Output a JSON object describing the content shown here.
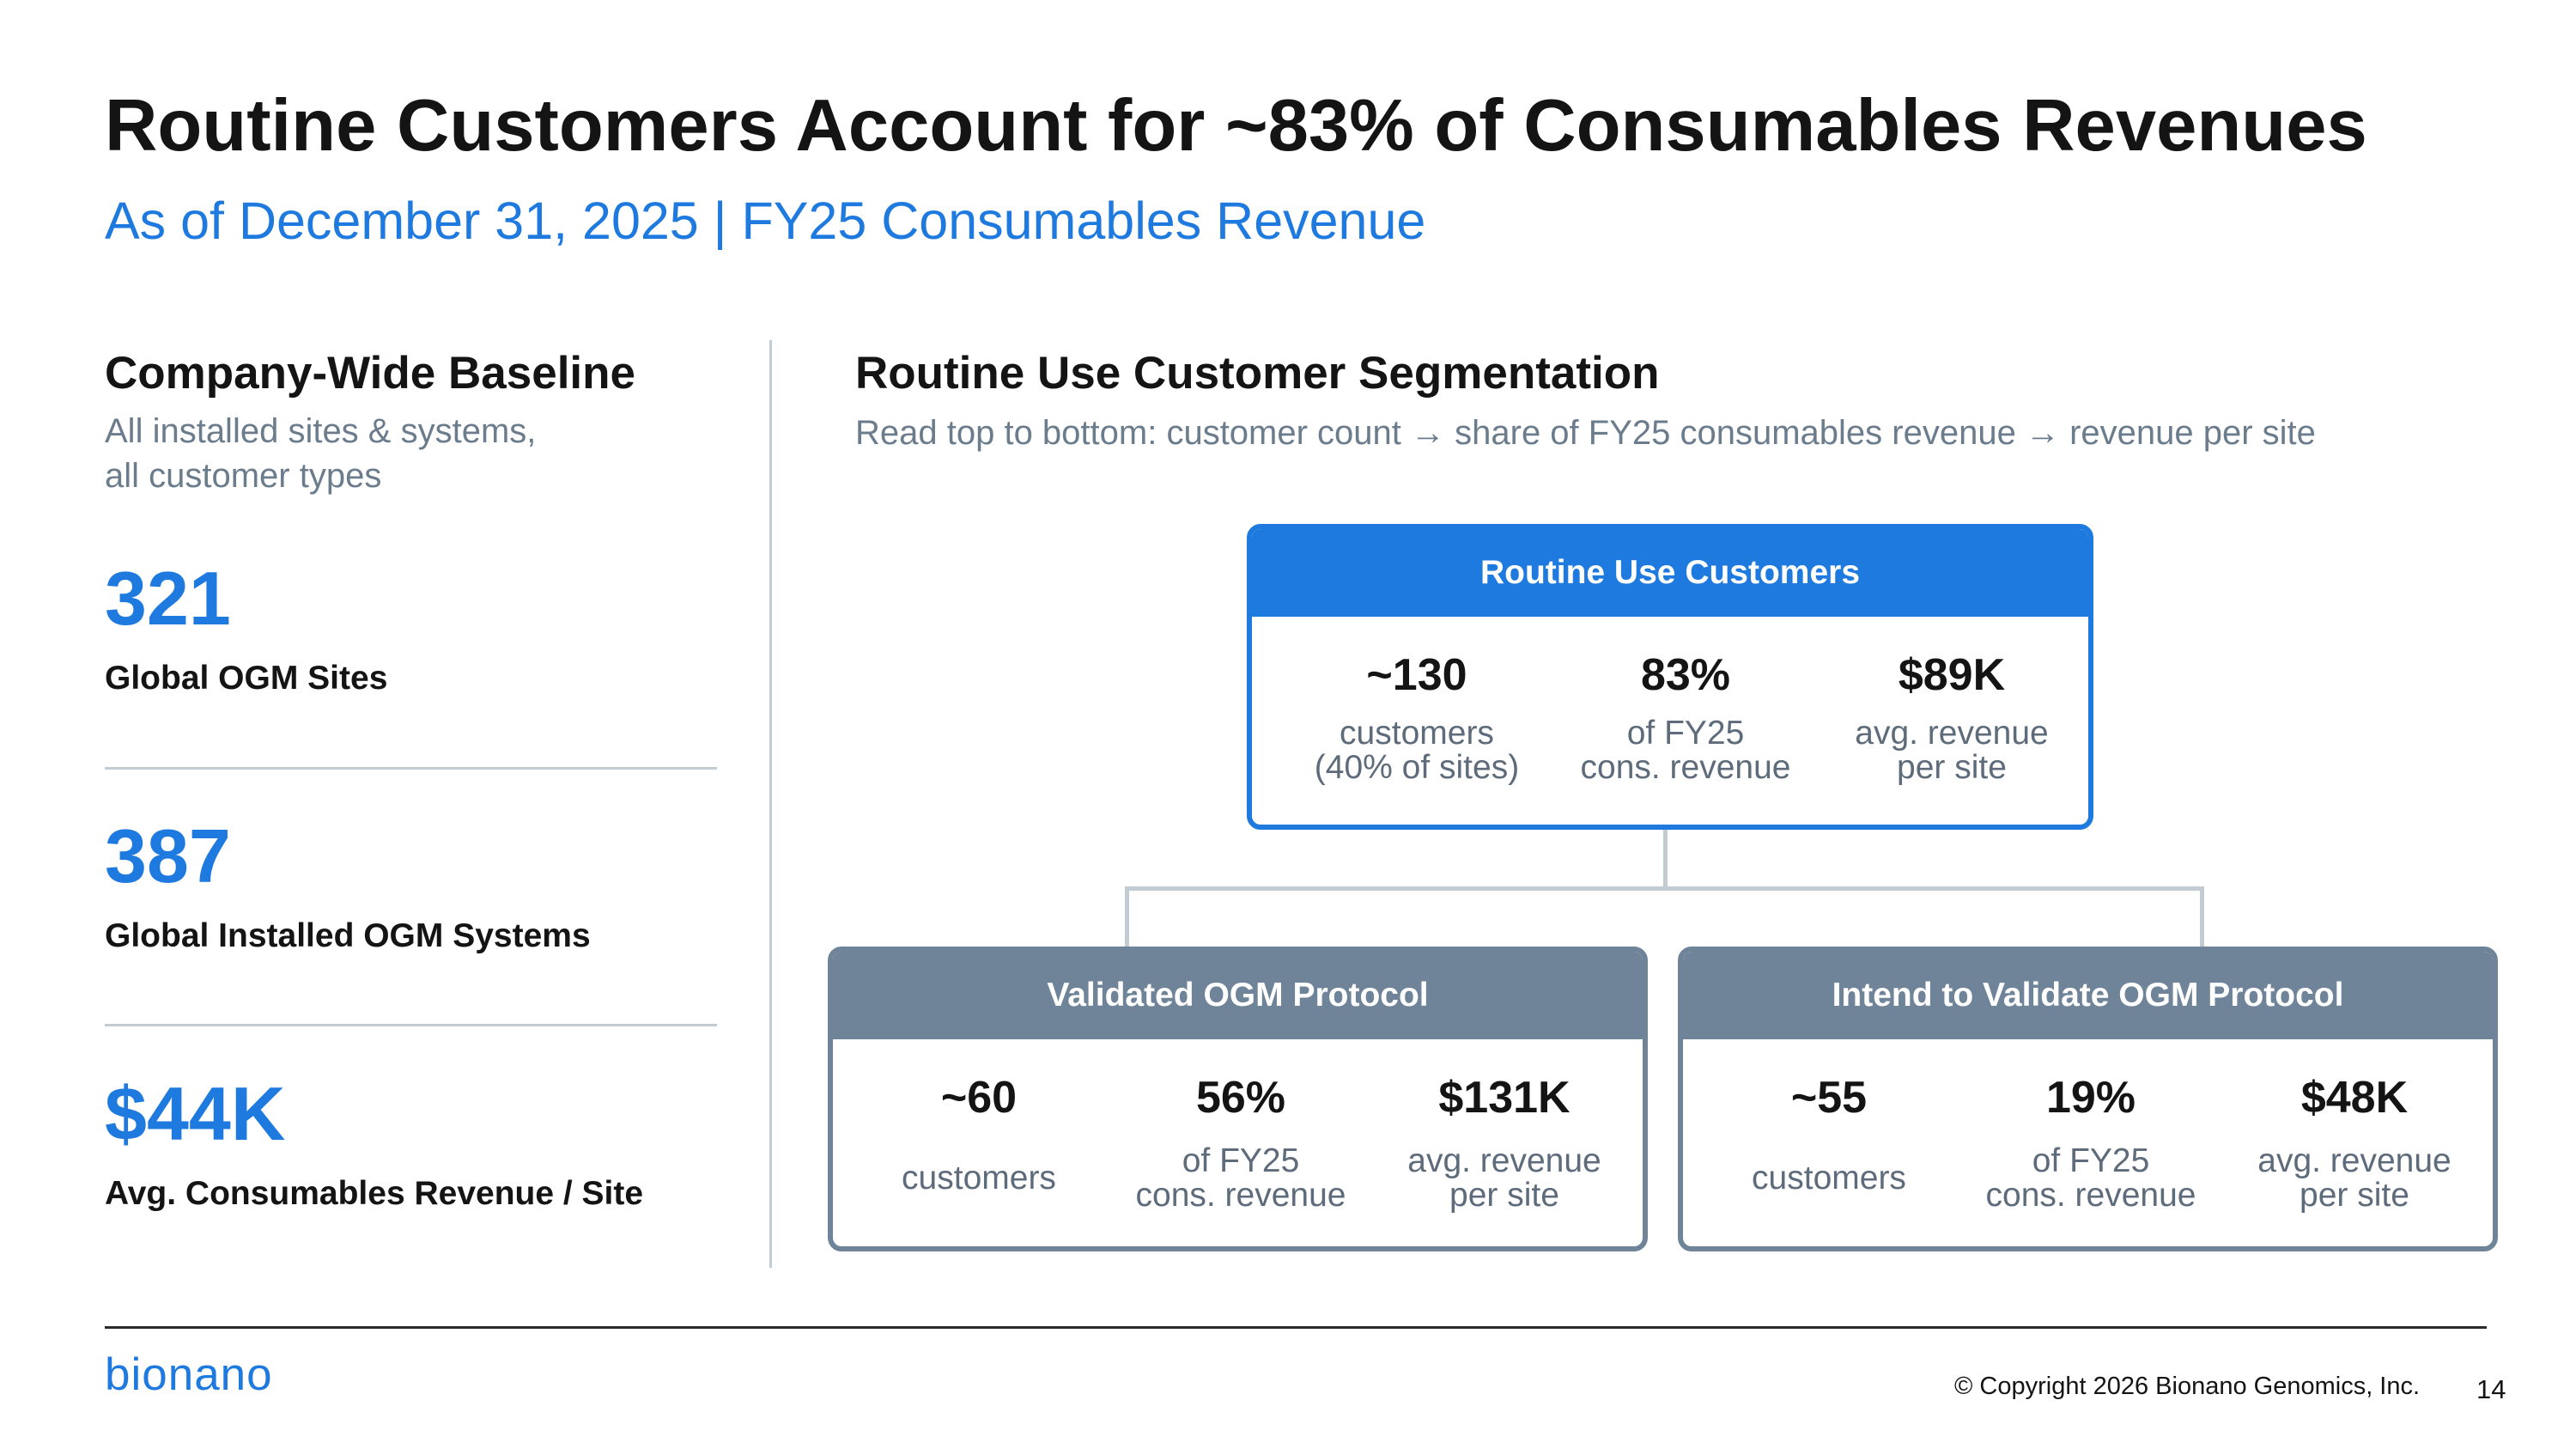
{
  "title": "Routine Customers Account for ~83% of Consumables Revenues",
  "subtitle": "As of December 31, 2025  |  FY25 Consumables Revenue",
  "left": {
    "heading": "Company-Wide Baseline",
    "desc_line1": "All installed sites & systems,",
    "desc_line2": "all customer types",
    "stats": [
      {
        "value": "321",
        "label": "Global OGM Sites"
      },
      {
        "value": "387",
        "label": "Global Installed OGM Systems"
      },
      {
        "value": "$44K",
        "label": "Avg. Consumables Revenue / Site"
      }
    ]
  },
  "right": {
    "heading": "Routine Use Customer Segmentation",
    "desc": "Read top to bottom: customer count → share of FY25 consumables revenue → revenue per site"
  },
  "routine_box": {
    "title": "Routine Use Customers",
    "cols": [
      {
        "value": "~130",
        "line1": "customers",
        "line2": "(40% of sites)"
      },
      {
        "value": "83%",
        "line1": "of FY25",
        "line2": "cons. revenue"
      },
      {
        "value": "$89K",
        "line1": "avg. revenue",
        "line2": "per site"
      }
    ]
  },
  "validated_box": {
    "title": "Validated OGM Protocol",
    "cols": [
      {
        "value": "~60",
        "line1": "customers",
        "line2": ""
      },
      {
        "value": "56%",
        "line1": "of FY25",
        "line2": "cons. revenue"
      },
      {
        "value": "$131K",
        "line1": "avg. revenue",
        "line2": "per site"
      }
    ]
  },
  "intend_box": {
    "title": "Intend to Validate OGM Protocol",
    "cols": [
      {
        "value": "~55",
        "line1": "customers",
        "line2": ""
      },
      {
        "value": "19%",
        "line1": "of FY25",
        "line2": "cons. revenue"
      },
      {
        "value": "$48K",
        "line1": "avg. revenue",
        "line2": "per site"
      }
    ]
  },
  "footer": {
    "logo": "bionano",
    "copyright": "© Copyright 2026 Bionano Genomics, Inc.",
    "page_number": "14"
  },
  "colors": {
    "accent_blue": "#1f7ae0",
    "slate": "#6f8499",
    "divider": "#c3cbd3"
  }
}
